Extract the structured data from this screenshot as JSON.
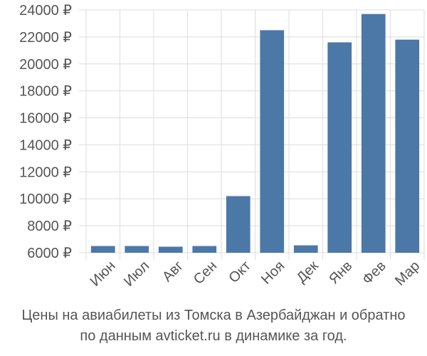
{
  "chart_data": {
    "type": "bar",
    "categories": [
      "Июн",
      "Июл",
      "Авг",
      "Сен",
      "Окт",
      "Ноя",
      "Дек",
      "Янв",
      "Фев",
      "Мар"
    ],
    "values": [
      6500,
      6500,
      6450,
      6500,
      10200,
      22500,
      6550,
      21600,
      23700,
      21800
    ],
    "ylim": [
      6000,
      24000
    ],
    "yticks": [
      "6000 ₽",
      "8000 ₽",
      "10000 ₽",
      "12000 ₽",
      "14000 ₽",
      "16000 ₽",
      "18000 ₽",
      "20000 ₽",
      "22000 ₽",
      "24000 ₽"
    ],
    "bar_color": "#4c78a8",
    "grid": true,
    "title": ""
  },
  "caption": {
    "line1": "Цены на авиабилеты из Томска в Азербайджан и обратно",
    "line2": "по данным avticket.ru в динамике за год."
  }
}
